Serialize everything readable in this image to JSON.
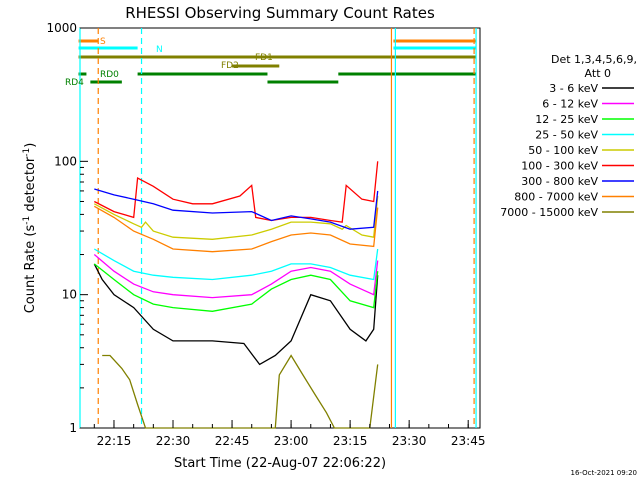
{
  "chart_data": {
    "type": "line",
    "title": "RHESSI Observing Summary Count Rates",
    "xlabel": "Start Time (22-Aug-07 22:06:22)",
    "ylabel_main": "Count Rate (s",
    "ylabel_sup1": "-1",
    "ylabel_mid": " detector",
    "ylabel_sup2": "-1",
    "ylabel_end": ")",
    "y_scale": "log",
    "ylim": [
      1,
      1000
    ],
    "xlim": [
      "22:06:22",
      "23:48:00"
    ],
    "x_ticks": [
      "22:15",
      "22:30",
      "22:45",
      "23:00",
      "23:15",
      "23:30",
      "23:45"
    ],
    "y_ticks": [
      "1",
      "10",
      "100",
      "1000"
    ],
    "detector_info": [
      "Det 1,3,4,5,6,9,",
      "Att 0"
    ],
    "footer_date": "16-Oct-2021 09:20",
    "flag_labels": {
      "saa": "S",
      "night": "N",
      "fd1": "FD1",
      "fd2": "FD2",
      "rd0": "RD0",
      "rd4": "RD4"
    },
    "flags": [
      {
        "name": "S",
        "color": "#ff8000",
        "segments": [
          [
            "22:06",
            "22:11"
          ],
          [
            "23:26",
            "23:47"
          ]
        ]
      },
      {
        "name": "N",
        "color": "#00ffff",
        "segments": [
          [
            "22:06",
            "22:21"
          ],
          [
            "23:26",
            "23:47"
          ]
        ]
      },
      {
        "name": "FD1",
        "color": "#808000",
        "segments": [
          [
            "22:06",
            "23:47"
          ]
        ]
      },
      {
        "name": "FD2",
        "color": "#808000",
        "segments": [
          [
            "22:45",
            "22:57"
          ]
        ]
      },
      {
        "name": "RD0",
        "color": "#008000",
        "segments": [
          [
            "22:06",
            "22:08"
          ],
          [
            "22:21",
            "22:54"
          ],
          [
            "23:12",
            "23:47"
          ]
        ]
      },
      {
        "name": "RD4",
        "color": "#008000",
        "segments": [
          [
            "22:09",
            "22:17"
          ],
          [
            "22:54",
            "23:12"
          ]
        ]
      }
    ],
    "vlines": [
      {
        "time": "22:06:22",
        "color": "#00ffff",
        "style": "solid"
      },
      {
        "time": "22:11:00",
        "color": "#ff8000",
        "style": "dashed"
      },
      {
        "time": "22:22:00",
        "color": "#00ffff",
        "style": "dashed"
      },
      {
        "time": "23:25:30",
        "color": "#ff8000",
        "style": "solid"
      },
      {
        "time": "23:26:30",
        "color": "#00ffff",
        "style": "solid"
      },
      {
        "time": "23:46:30",
        "color": "#ff8000",
        "style": "dashed"
      },
      {
        "time": "23:47:00",
        "color": "#00ffff",
        "style": "solid"
      }
    ],
    "series": [
      {
        "name": "3 - 6 keV",
        "color": "#000000",
        "points": [
          [
            "22:10",
            17
          ],
          [
            "22:12",
            13
          ],
          [
            "22:15",
            10
          ],
          [
            "22:20",
            8
          ],
          [
            "22:25",
            5.5
          ],
          [
            "22:30",
            4.5
          ],
          [
            "22:40",
            4.5
          ],
          [
            "22:48",
            4.3
          ],
          [
            "22:52",
            3
          ],
          [
            "22:56",
            3.5
          ],
          [
            "23:00",
            4.5
          ],
          [
            "23:05",
            10
          ],
          [
            "23:10",
            9
          ],
          [
            "23:15",
            5.5
          ],
          [
            "23:19",
            4.5
          ],
          [
            "23:21",
            5.5
          ],
          [
            "23:22",
            14
          ]
        ]
      },
      {
        "name": "6 - 12 keV",
        "color": "#ff00ff",
        "points": [
          [
            "22:10",
            20
          ],
          [
            "22:15",
            15
          ],
          [
            "22:20",
            12
          ],
          [
            "22:25",
            10.5
          ],
          [
            "22:30",
            10
          ],
          [
            "22:40",
            9.5
          ],
          [
            "22:50",
            10
          ],
          [
            "22:55",
            12
          ],
          [
            "23:00",
            15
          ],
          [
            "23:05",
            16
          ],
          [
            "23:10",
            15
          ],
          [
            "23:15",
            12
          ],
          [
            "23:21",
            10
          ],
          [
            "23:22",
            18
          ]
        ]
      },
      {
        "name": "12 - 25 keV",
        "color": "#00ff00",
        "points": [
          [
            "22:10",
            17
          ],
          [
            "22:15",
            13
          ],
          [
            "22:20",
            10
          ],
          [
            "22:25",
            8.5
          ],
          [
            "22:30",
            8
          ],
          [
            "22:40",
            7.5
          ],
          [
            "22:50",
            8.5
          ],
          [
            "22:55",
            11
          ],
          [
            "23:00",
            13
          ],
          [
            "23:05",
            14
          ],
          [
            "23:10",
            13
          ],
          [
            "23:15",
            9
          ],
          [
            "23:21",
            8
          ],
          [
            "23:22",
            15
          ]
        ]
      },
      {
        "name": "25 - 50 keV",
        "color": "#00ffff",
        "points": [
          [
            "22:10",
            22
          ],
          [
            "22:15",
            18
          ],
          [
            "22:20",
            15
          ],
          [
            "22:25",
            14
          ],
          [
            "22:30",
            13.5
          ],
          [
            "22:40",
            13
          ],
          [
            "22:50",
            14
          ],
          [
            "22:55",
            15
          ],
          [
            "23:00",
            17
          ],
          [
            "23:05",
            17
          ],
          [
            "23:10",
            16
          ],
          [
            "23:15",
            14
          ],
          [
            "23:21",
            13
          ],
          [
            "23:22",
            22
          ]
        ]
      },
      {
        "name": "50 - 100 keV",
        "color": "#cccc00",
        "points": [
          [
            "22:10",
            48
          ],
          [
            "22:15",
            40
          ],
          [
            "22:20",
            34
          ],
          [
            "22:22",
            32
          ],
          [
            "22:23",
            35
          ],
          [
            "22:25",
            30
          ],
          [
            "22:30",
            27
          ],
          [
            "22:40",
            26
          ],
          [
            "22:50",
            28
          ],
          [
            "22:55",
            31
          ],
          [
            "23:00",
            35
          ],
          [
            "23:05",
            35
          ],
          [
            "23:10",
            34
          ],
          [
            "23:13",
            31
          ],
          [
            "23:14",
            33
          ],
          [
            "23:18",
            28
          ],
          [
            "23:21",
            27
          ],
          [
            "23:22",
            55
          ]
        ]
      },
      {
        "name": "100 - 300 keV",
        "color": "#ff0000",
        "points": [
          [
            "22:10",
            50
          ],
          [
            "22:15",
            42
          ],
          [
            "22:20",
            38
          ],
          [
            "22:21",
            75
          ],
          [
            "22:25",
            65
          ],
          [
            "22:30",
            52
          ],
          [
            "22:35",
            48
          ],
          [
            "22:40",
            48
          ],
          [
            "22:47",
            55
          ],
          [
            "22:50",
            66
          ],
          [
            "22:51",
            38
          ],
          [
            "22:55",
            36
          ],
          [
            "23:00",
            38
          ],
          [
            "23:05",
            38
          ],
          [
            "23:10",
            36
          ],
          [
            "23:13",
            35
          ],
          [
            "23:14",
            66
          ],
          [
            "23:18",
            52
          ],
          [
            "23:21",
            50
          ],
          [
            "23:22",
            100
          ]
        ]
      },
      {
        "name": "300 - 800 keV",
        "color": "#0000ff",
        "points": [
          [
            "22:10",
            62
          ],
          [
            "22:15",
            56
          ],
          [
            "22:20",
            52
          ],
          [
            "22:25",
            48
          ],
          [
            "22:30",
            43
          ],
          [
            "22:40",
            41
          ],
          [
            "22:50",
            42
          ],
          [
            "22:55",
            36
          ],
          [
            "23:00",
            39
          ],
          [
            "23:05",
            37
          ],
          [
            "23:10",
            35
          ],
          [
            "23:15",
            31
          ],
          [
            "23:21",
            32
          ],
          [
            "23:22",
            60
          ]
        ]
      },
      {
        "name": "800 - 7000 keV",
        "color": "#ff8000",
        "points": [
          [
            "22:10",
            46
          ],
          [
            "22:15",
            38
          ],
          [
            "22:20",
            30
          ],
          [
            "22:25",
            26
          ],
          [
            "22:30",
            22
          ],
          [
            "22:40",
            21
          ],
          [
            "22:50",
            22
          ],
          [
            "22:55",
            25
          ],
          [
            "23:00",
            28
          ],
          [
            "23:05",
            29
          ],
          [
            "23:10",
            28
          ],
          [
            "23:15",
            24
          ],
          [
            "23:21",
            23
          ],
          [
            "23:22",
            45
          ]
        ]
      },
      {
        "name": "7000 - 15000 keV",
        "color": "#808000",
        "points": [
          [
            "22:12",
            3.5
          ],
          [
            "22:14",
            3.5
          ],
          [
            "22:17",
            2.8
          ],
          [
            "22:19",
            2.3
          ],
          [
            "22:21",
            1.5
          ],
          [
            "22:23",
            1
          ],
          [
            "22:56",
            1
          ],
          [
            "22:57",
            2.5
          ],
          [
            "23:00",
            3.5
          ],
          [
            "23:03",
            2.5
          ],
          [
            "23:06",
            1.8
          ],
          [
            "23:09",
            1.3
          ],
          [
            "23:11",
            1
          ],
          [
            "23:20",
            1
          ],
          [
            "23:22",
            3
          ]
        ]
      }
    ]
  }
}
